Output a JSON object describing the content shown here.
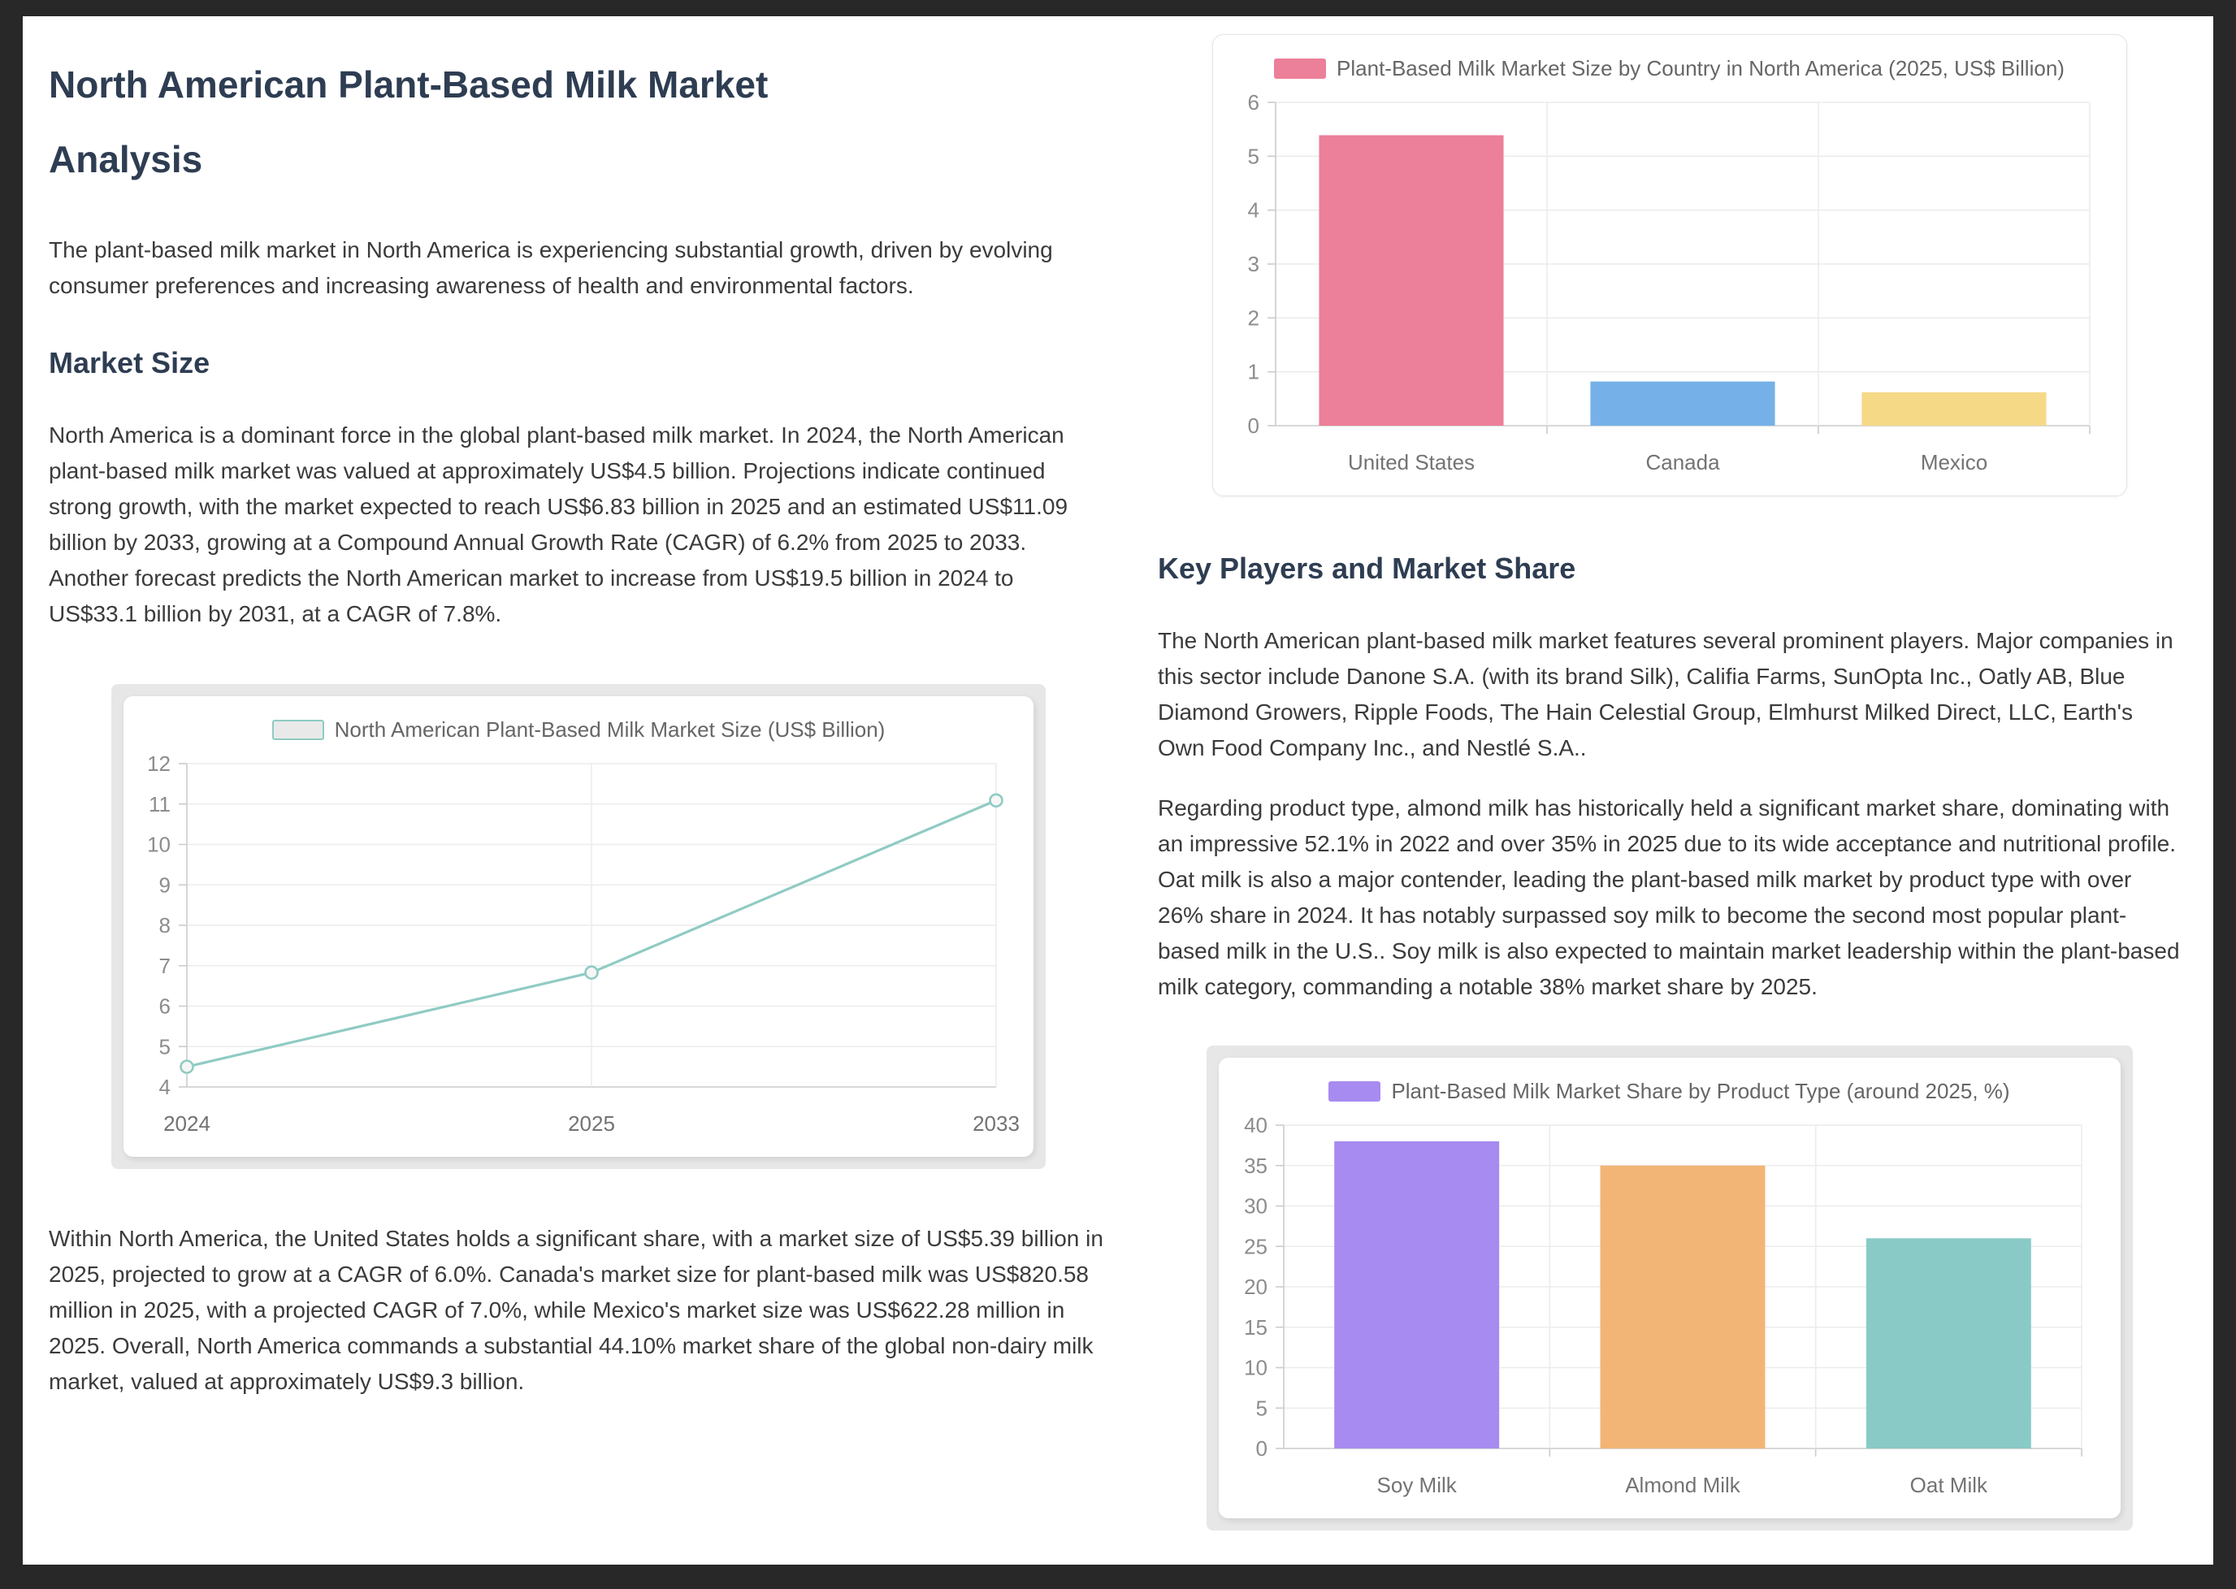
{
  "page": {
    "title_line1": "North American Plant-Based Milk Market",
    "title_line2": "Analysis",
    "intro": "The plant-based milk market in North America is experiencing substantial growth, driven by evolving consumer preferences and increasing awareness of health and environmental factors.",
    "market_size": {
      "heading": "Market Size",
      "para1": "North America is a dominant force in the global plant-based milk market. In 2024, the North American plant-based milk market was valued at approximately US$4.5 billion. Projections indicate continued strong growth, with the market expected to reach US$6.83 billion in 2025 and an estimated US$11.09 billion by 2033, growing at a Compound Annual Growth Rate (CAGR) of 6.2% from 2025 to 2033. Another forecast predicts the North American market to increase from US$19.5 billion in 2024 to US$33.1 billion by 2031, at a CAGR of 7.8%.",
      "para2": "Within North America, the United States holds a significant share, with a market size of US$5.39 billion in 2025, projected to grow at a CAGR of 6.0%. Canada's market size for plant-based milk was US$820.58 million in 2025, with a projected CAGR of 7.0%, while Mexico's market size was US$622.28 million in 2025. Overall, North America commands a substantial 44.10% market share of the global non-dairy milk market, valued at approximately US$9.3 billion."
    },
    "key_players": {
      "heading": "Key Players and Market Share",
      "para1": "The North American plant-based milk market features several prominent players. Major companies in this sector include Danone S.A. (with its brand Silk), Califia Farms, SunOpta Inc., Oatly AB, Blue Diamond Growers, Ripple Foods, The Hain Celestial Group, Elmhurst Milked Direct, LLC, Earth's Own Food Company Inc., and Nestlé S.A..",
      "para2": "Regarding product type, almond milk has historically held a significant market share, dominating with an impressive 52.1% in 2022 and over 35% in 2025 due to its wide acceptance and nutritional profile. Oat milk is also a major contender, leading the plant-based milk market by product type with over 26% share in 2024. It has notably surpassed soy milk to become the second most popular plant-based milk in the U.S.. Soy milk is also expected to maintain market leadership within the plant-based milk category, commanding a notable 38% market share by 2025."
    }
  },
  "colors": {
    "heading": "#2e3d52",
    "body_text": "#3b3b3b",
    "grid": "#ececec",
    "axis": "#cccccc",
    "y_label": "#8c8c8c",
    "x_label": "#737373",
    "legend_text": "#666666"
  },
  "chart_data": [
    {
      "type": "line",
      "title": "North American Plant-Based Milk Market Size (US$ Billion)",
      "categories": [
        "2024",
        "2025",
        "2033"
      ],
      "values": [
        4.5,
        6.83,
        11.09
      ],
      "xlabel": "",
      "ylabel": "",
      "ylim": [
        4,
        12
      ],
      "ytick": 1,
      "grid": true,
      "legend_position": "top",
      "color": "#8fcbc3",
      "legend_fill": "#e9e9e9"
    },
    {
      "type": "bar",
      "title": "Plant-Based Milk Market Size by Country in North America (2025, US$ Billion)",
      "categories": [
        "United States",
        "Canada",
        "Mexico"
      ],
      "values": [
        5.39,
        0.82,
        0.62
      ],
      "xlabel": "",
      "ylabel": "",
      "ylim": [
        0,
        6
      ],
      "ytick": 1,
      "grid": true,
      "legend_position": "top",
      "bar_frac": 0.68,
      "colors": [
        "#ec7f99",
        "#75b1e8",
        "#f5d987"
      ],
      "legend_color": "#ec7f99"
    },
    {
      "type": "bar",
      "title": "Plant-Based Milk Market Share by Product Type (around 2025, %)",
      "categories": [
        "Soy Milk",
        "Almond Milk",
        "Oat Milk"
      ],
      "values": [
        38,
        35,
        26
      ],
      "xlabel": "",
      "ylabel": "",
      "ylim": [
        0,
        40
      ],
      "ytick": 5,
      "grid": true,
      "legend_position": "top",
      "bar_frac": 0.62,
      "colors": [
        "#a78bf0",
        "#f2b575",
        "#89cac7"
      ],
      "legend_color": "#a78bf0"
    }
  ]
}
